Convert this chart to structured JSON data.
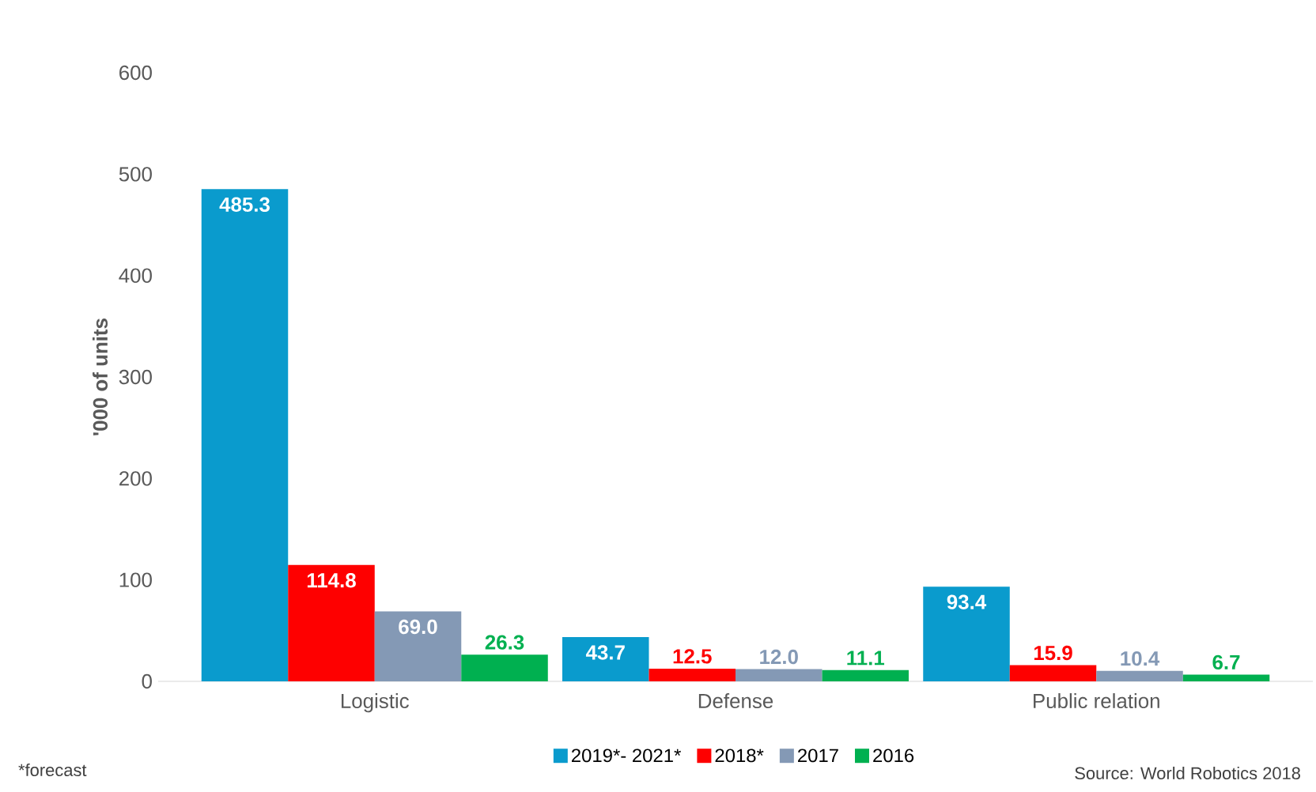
{
  "chart_data": {
    "type": "bar",
    "ylabel": "'000 of units",
    "categories": [
      "Logistic",
      "Defense",
      "Public relation"
    ],
    "series": [
      {
        "name": "2019*- 2021*",
        "color": "#0a9bcd",
        "values": [
          485.3,
          43.7,
          93.4
        ],
        "value_labels": [
          "485.3",
          "43.7",
          "93.4"
        ]
      },
      {
        "name": "2018*",
        "color": "#fe0000",
        "values": [
          114.8,
          12.5,
          15.9
        ],
        "value_labels": [
          "114.8",
          "12.5",
          "15.9"
        ]
      },
      {
        "name": "2017",
        "color": "#8499b5",
        "values": [
          69.0,
          12.0,
          10.4
        ],
        "value_labels": [
          "69.0",
          "12.0",
          "10.4"
        ]
      },
      {
        "name": "2016",
        "color": "#00b050",
        "values": [
          26.3,
          11.1,
          6.7
        ],
        "value_labels": [
          "26.3",
          "11.1",
          "6.7"
        ]
      }
    ],
    "ylim": [
      0,
      600
    ],
    "yticks": [
      0,
      100,
      200,
      300,
      400,
      500,
      600
    ],
    "legend": "bottom",
    "annotations": [
      "*forecast",
      "Source: World Robotics 2018"
    ]
  }
}
